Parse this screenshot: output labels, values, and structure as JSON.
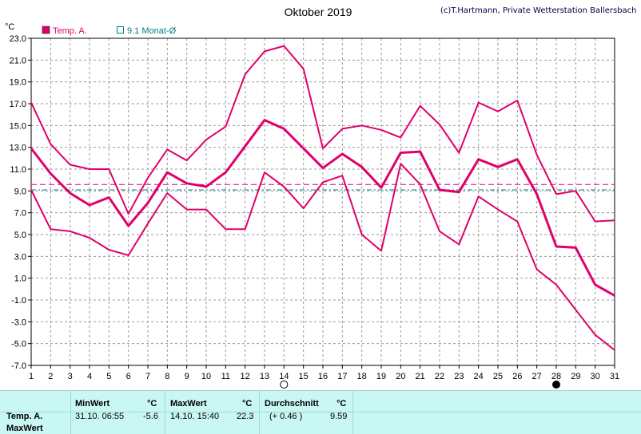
{
  "chart": {
    "title": "Oktober 2019",
    "credit": "(c)T.Hartmann, Private Wetterstation Ballersbach",
    "unit": "°C",
    "legend": [
      {
        "label": "Temp. A.",
        "color": "#e0006a",
        "marker": "filled-square"
      },
      {
        "label": "9.1 Monat-Ø",
        "color": "#008080",
        "marker": "hollow-square"
      }
    ]
  },
  "chart_data": {
    "type": "line",
    "x": [
      1,
      2,
      3,
      4,
      5,
      6,
      7,
      8,
      9,
      10,
      11,
      12,
      13,
      14,
      15,
      16,
      17,
      18,
      19,
      20,
      21,
      22,
      23,
      24,
      25,
      26,
      27,
      28,
      29,
      30,
      31
    ],
    "x_ticks": [
      "1",
      "2",
      "3",
      "4",
      "5",
      "6",
      "7",
      "8",
      "9",
      "10",
      "11",
      "12",
      "13",
      "14",
      "15",
      "16",
      "17",
      "18",
      "19",
      "20",
      "21",
      "22",
      "23",
      "24",
      "25",
      "26",
      "27",
      "28",
      "29",
      "30",
      "31"
    ],
    "ylim": [
      -7.0,
      23.0
    ],
    "y_ticks": [
      "23.0",
      "21.0",
      "19.0",
      "17.0",
      "15.0",
      "13.0",
      "11.0",
      "9.0",
      "7.0",
      "5.0",
      "3.0",
      "1.0",
      "-1.0",
      "-3.0",
      "-5.0",
      "-7.0"
    ],
    "grid": true,
    "legend_position": "top-left",
    "series": [
      {
        "name": "Temp. A.",
        "role": "max",
        "color": "#e0006a",
        "values": [
          17.1,
          13.3,
          11.4,
          11.0,
          11.0,
          6.9,
          10.2,
          12.8,
          11.8,
          13.7,
          14.9,
          19.7,
          21.8,
          22.3,
          20.2,
          12.9,
          14.7,
          15.0,
          14.6,
          13.9,
          16.8,
          15.1,
          12.5,
          17.1,
          16.3,
          17.3,
          12.3,
          8.7,
          9.0,
          6.2,
          6.3
        ]
      },
      {
        "role": "mean",
        "color": "#e0006a",
        "values": [
          12.9,
          10.6,
          8.8,
          7.7,
          8.4,
          5.8,
          7.9,
          10.7,
          9.7,
          9.4,
          10.7,
          13.1,
          15.5,
          14.7,
          12.9,
          11.1,
          12.4,
          11.2,
          9.3,
          12.5,
          12.6,
          9.1,
          8.9,
          11.9,
          11.2,
          11.9,
          8.7,
          3.9,
          3.8,
          0.4,
          -0.6
        ]
      },
      {
        "role": "min",
        "color": "#e0006a",
        "values": [
          9.1,
          5.5,
          5.3,
          4.7,
          3.6,
          3.1,
          6.0,
          8.8,
          7.3,
          7.3,
          5.5,
          5.5,
          10.7,
          9.4,
          7.4,
          9.8,
          10.4,
          5.0,
          3.5,
          11.5,
          9.6,
          5.3,
          4.1,
          8.5,
          7.3,
          6.2,
          1.8,
          0.4,
          -1.9,
          -4.2,
          -5.6
        ]
      }
    ],
    "reference_lines": [
      {
        "name": "9.1 Monat-Ø",
        "value": 9.1,
        "color": "#008080",
        "style": "dash-dot"
      },
      {
        "role": "average",
        "value": 9.59,
        "color": "#e0006a",
        "style": "dashed"
      }
    ],
    "markers": [
      {
        "day": 14,
        "symbol": "full-moon",
        "filled": false
      },
      {
        "day": 28,
        "symbol": "new-moon",
        "filled": true
      }
    ]
  },
  "stats": {
    "headers": {
      "min": "MinWert",
      "max": "MaxWert",
      "avg": "Durchschnitt",
      "unit": "°C"
    },
    "row_label": "Temp. A.",
    "row2_label": "MaxWert",
    "min": {
      "datetime": "31.10.  06:55",
      "value": "-5.6"
    },
    "max": {
      "datetime": "14.10.  15:40",
      "value": "22.3"
    },
    "avg": {
      "deviation": "(+ 0.46 )",
      "value": "9.59"
    }
  }
}
